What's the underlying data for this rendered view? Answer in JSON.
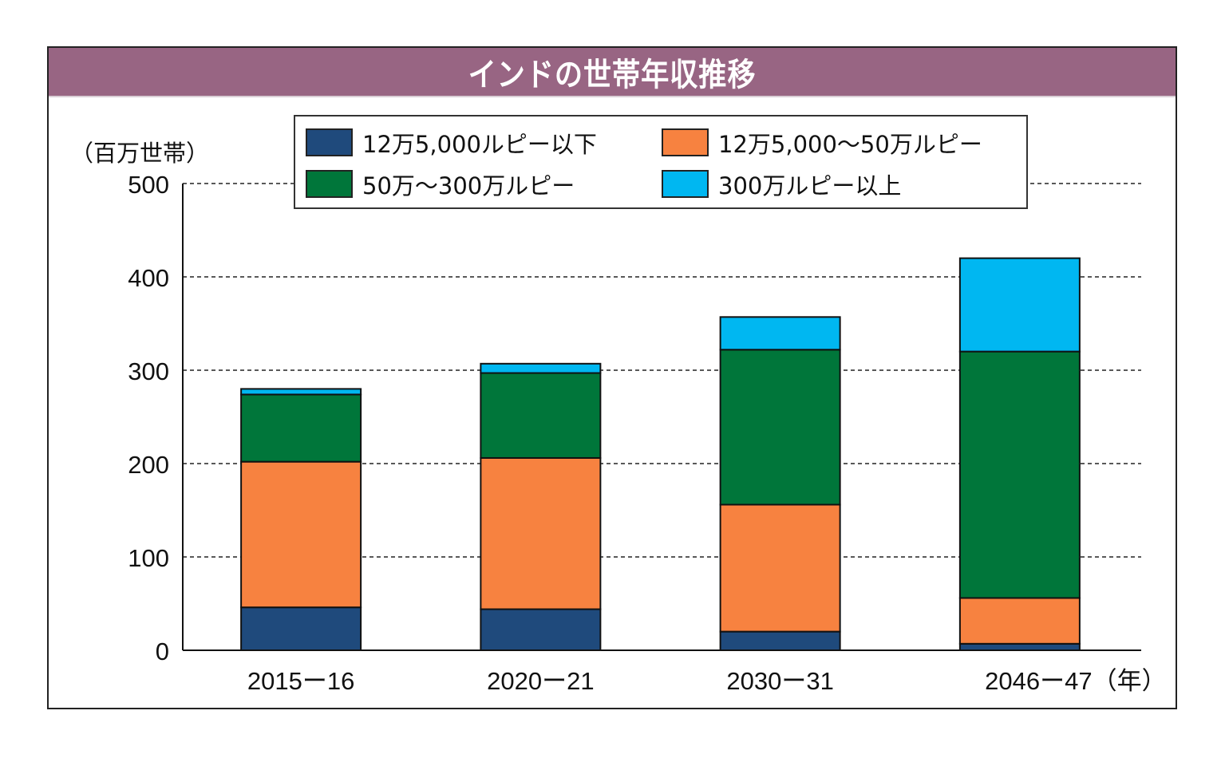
{
  "chart_data": {
    "type": "bar",
    "stacked": true,
    "title": "インドの世帯年収推移",
    "ylabel": "（百万世帯）",
    "xlabel": "（年）",
    "ylim": [
      0,
      500
    ],
    "yticks": [
      0,
      100,
      200,
      300,
      400,
      500
    ],
    "grid": true,
    "categories": [
      "2015−16",
      "2020−21",
      "2030−31",
      "2046−47"
    ],
    "category_labels": [
      "2015ー16",
      "2020ー21",
      "2030ー31",
      "2046ー47（年）"
    ],
    "series": [
      {
        "name": "12万5,000ルピー以下",
        "color": "#1f4a7c",
        "values": [
          46,
          44,
          20,
          7
        ]
      },
      {
        "name": "12万5,000〜50万ルピー",
        "color": "#f78240",
        "values": [
          156,
          162,
          136,
          49
        ]
      },
      {
        "name": "50万〜300万ルピー",
        "color": "#00763a",
        "values": [
          72,
          91,
          166,
          264
        ]
      },
      {
        "name": "300万ルピー以上",
        "color": "#00b7f1",
        "values": [
          6,
          10,
          35,
          100
        ]
      }
    ],
    "legend_position": "top-center"
  },
  "ytick_labels": [
    "0",
    "100",
    "200",
    "300",
    "400",
    "500"
  ],
  "colors": {
    "title_bar": "#986583"
  }
}
